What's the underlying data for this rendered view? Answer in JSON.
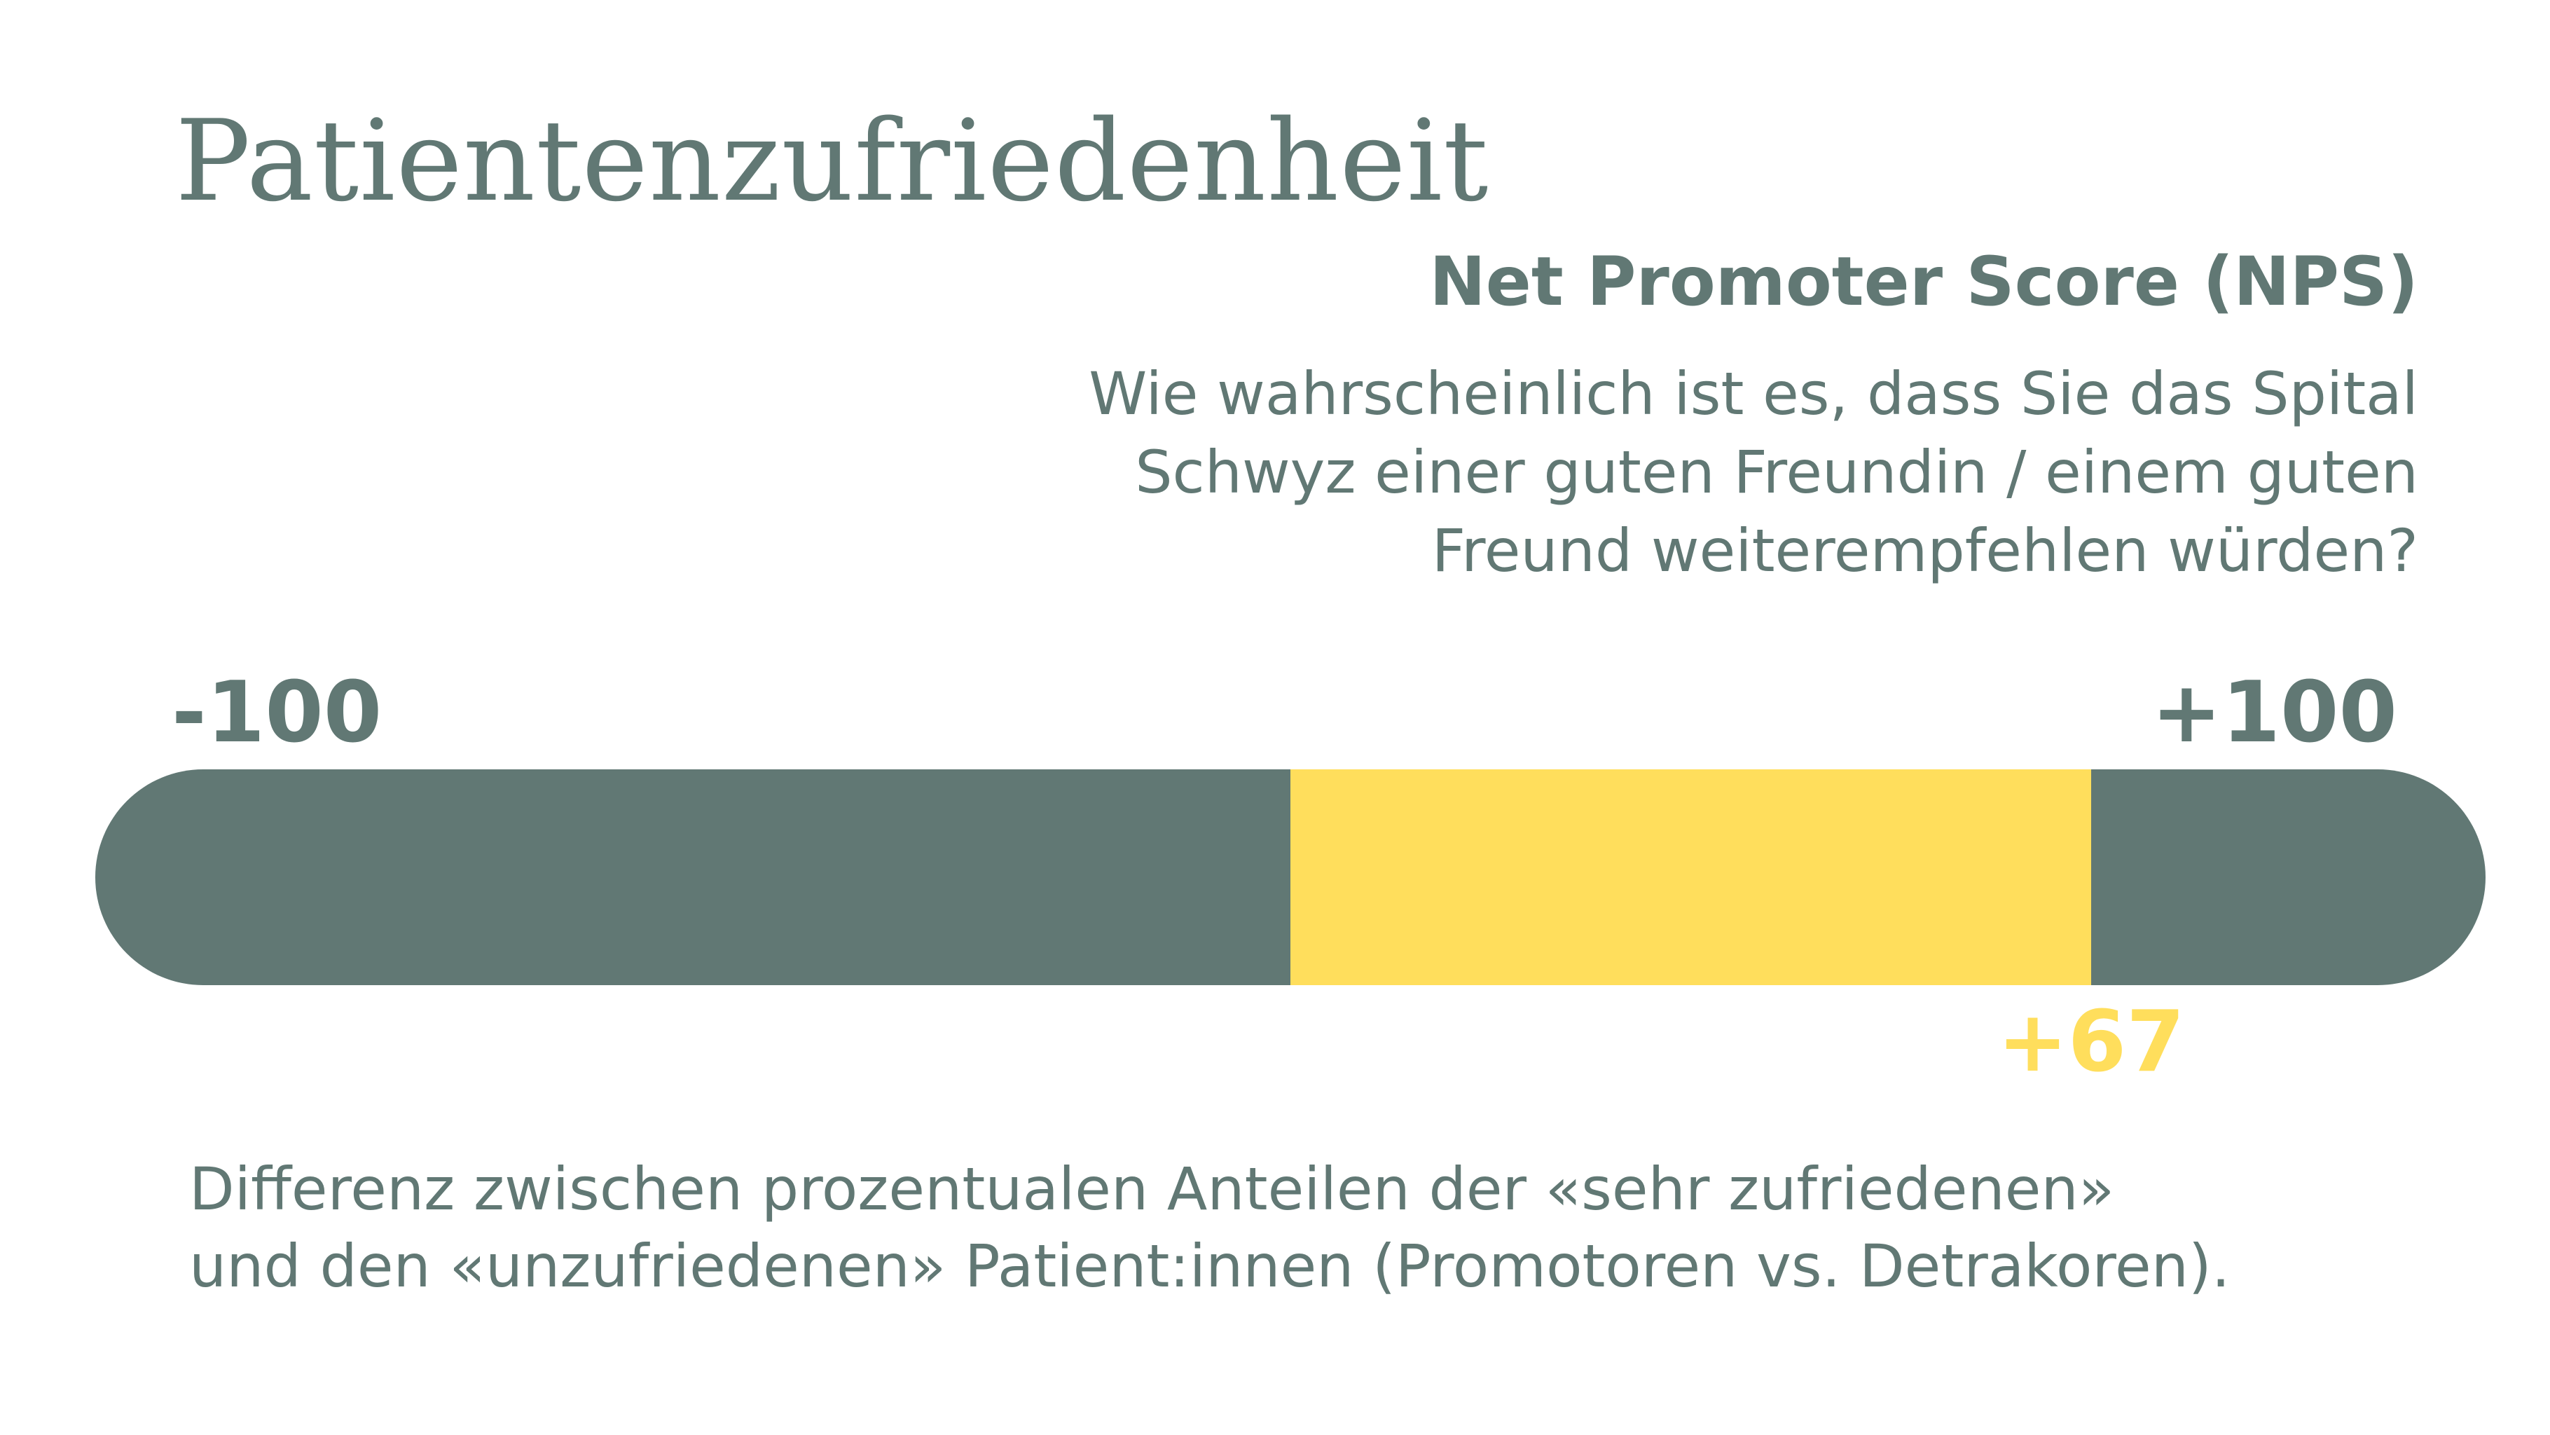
{
  "title": "Patientenzufriedenheit",
  "chart_data": {
    "type": "bar",
    "title": "Net Promoter Score (NPS)",
    "question_lines": [
      "Wie wahrscheinlich ist es, dass Sie das Spital",
      "Schwyz einer guten Freundin / einem guten",
      "Freund weiterempfehlen würden?"
    ],
    "xlim": [
      -100,
      100
    ],
    "tick_labels": [
      "-100",
      "+100"
    ],
    "value": 67,
    "value_label": "+67",
    "bar_color": "#617874",
    "highlight_color": "#FFDE5C",
    "note_lines": [
      "Differenz zwischen prozentualen Anteilen der «sehr zufriedenen»",
      "und den «unzufriedenen» Patient:innen (Promotoren vs. Detrakoren)."
    ]
  }
}
